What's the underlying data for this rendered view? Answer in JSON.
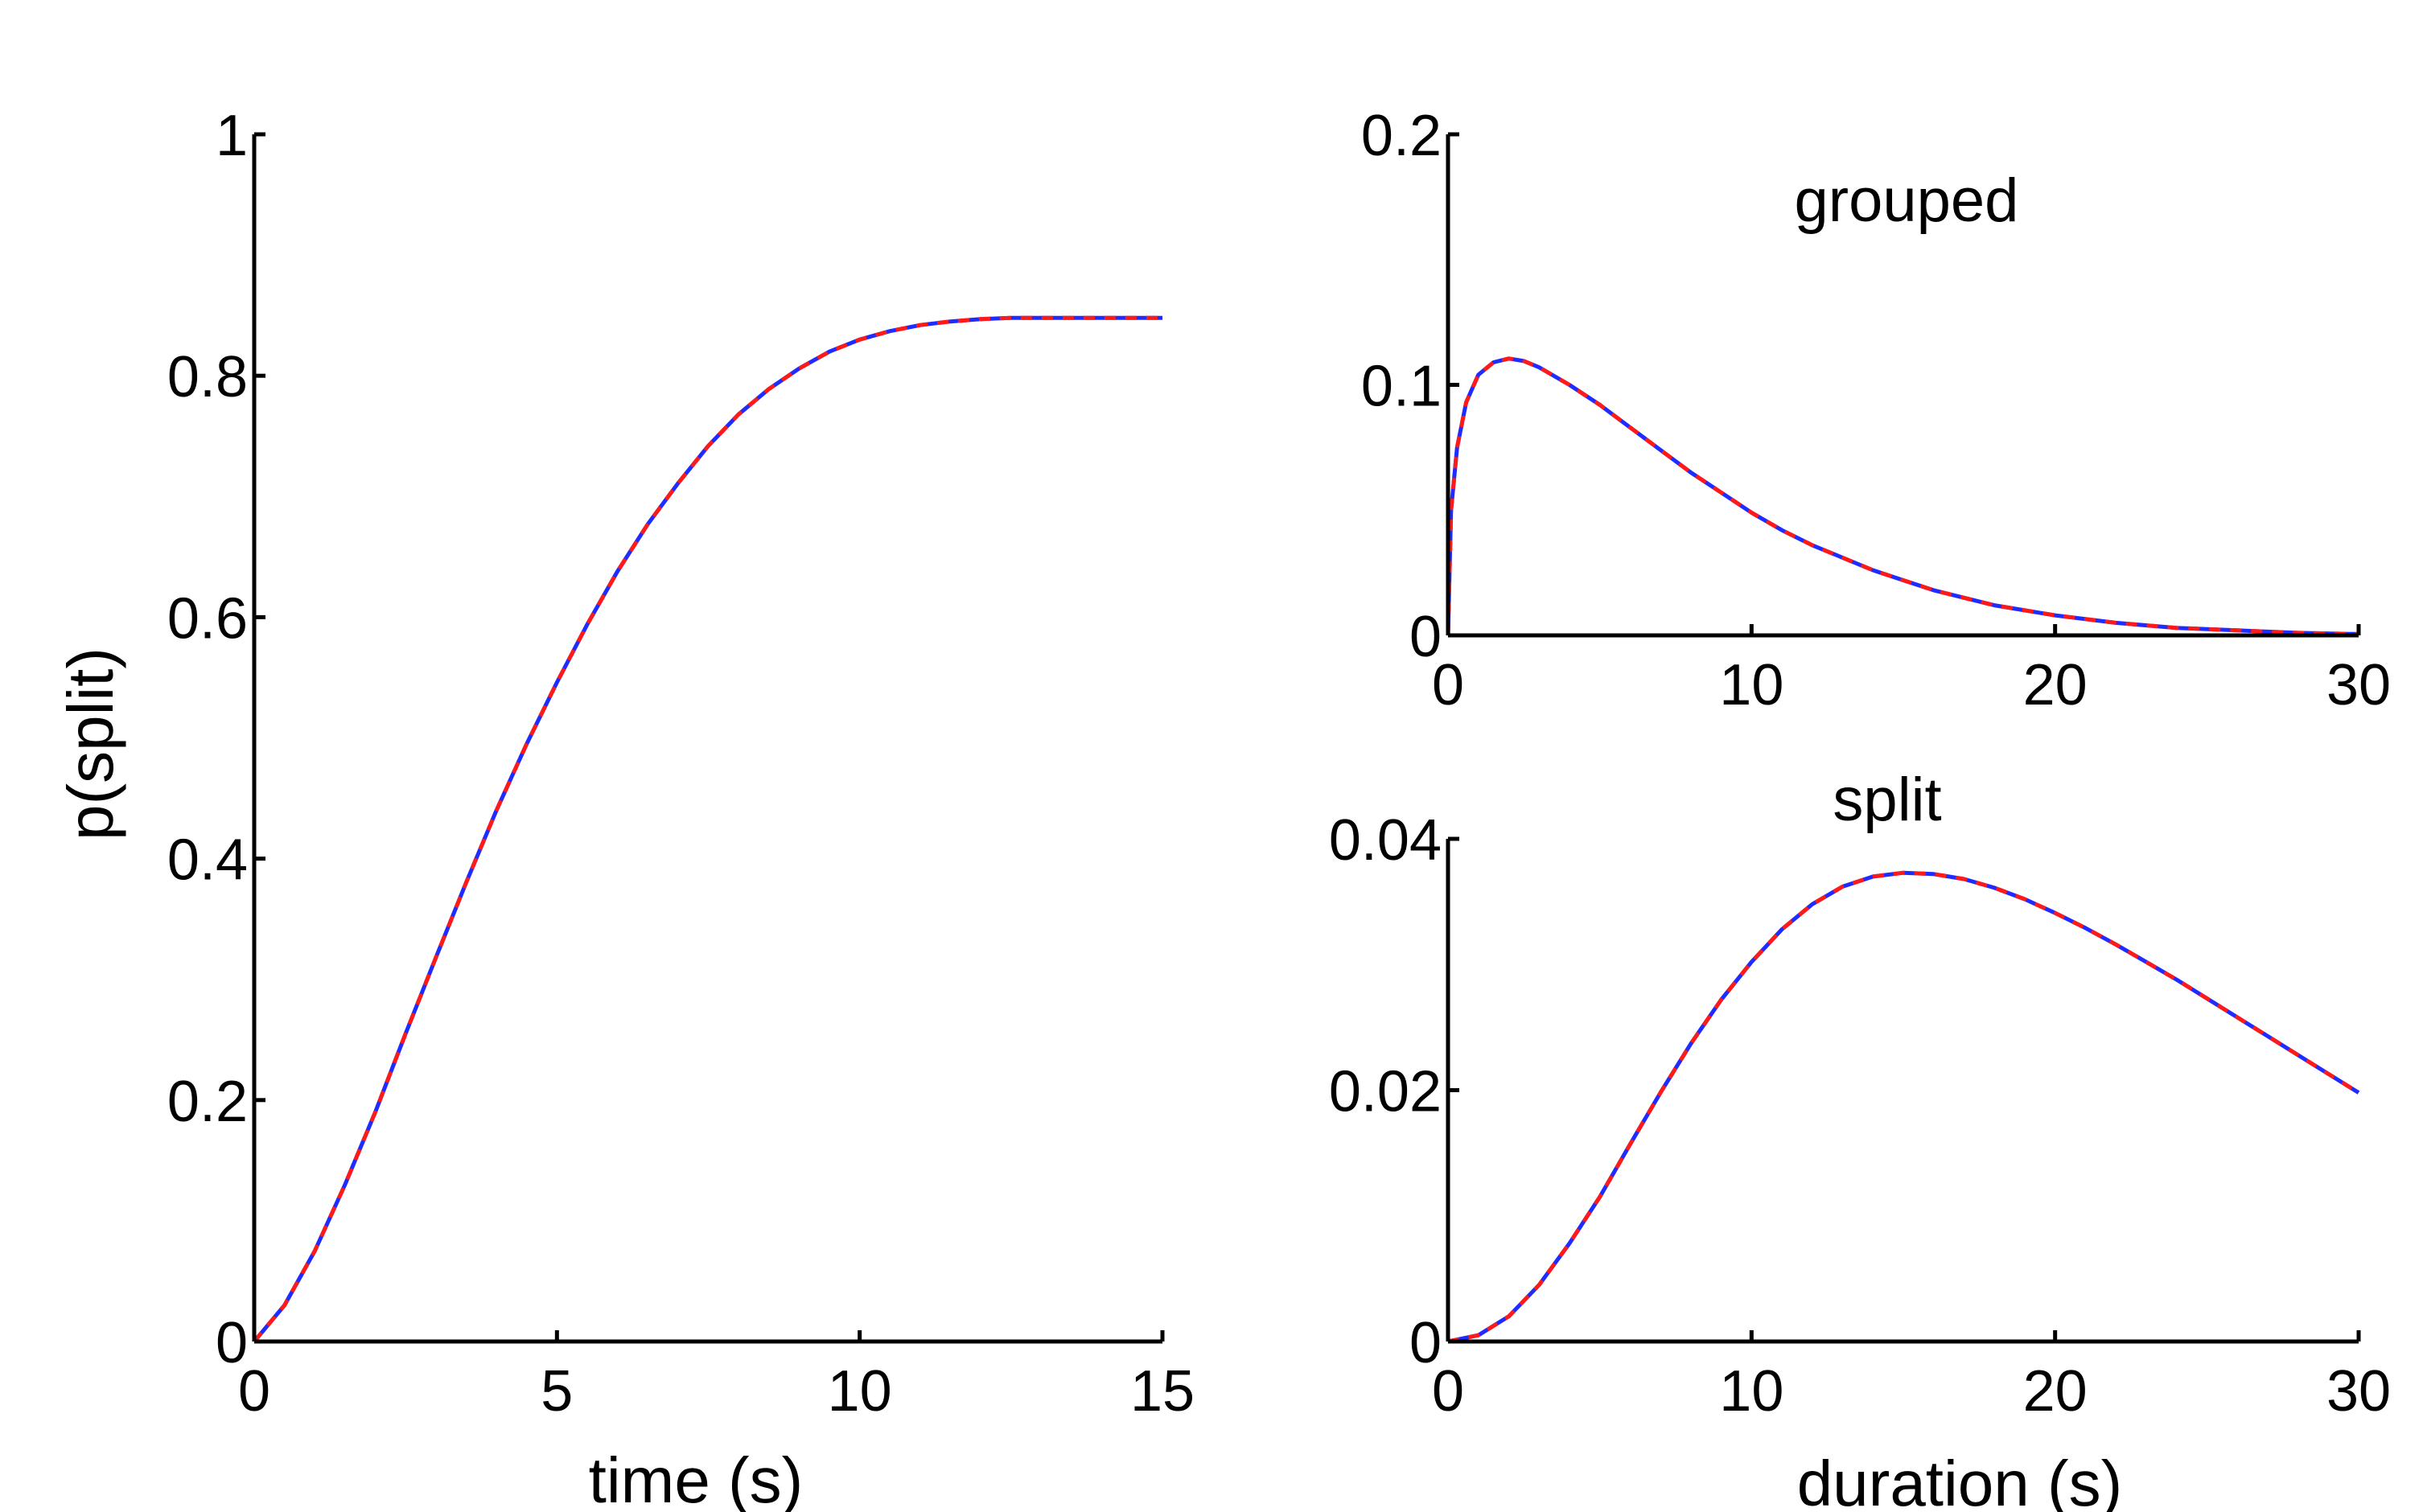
{
  "chart_data": [
    {
      "id": "cumulative",
      "type": "line",
      "title": "",
      "xlabel": "time (s)",
      "ylabel": "p(split)",
      "xlim": [
        0,
        15
      ],
      "ylim": [
        0,
        1
      ],
      "xticks": [
        0,
        5,
        10,
        15
      ],
      "yticks": [
        0,
        0.2,
        0.4,
        0.6,
        0.8,
        1
      ],
      "xtick_labels": [
        "0",
        "5",
        "10",
        "15"
      ],
      "ytick_labels": [
        "0",
        "0.2",
        "0.4",
        "0.6",
        "0.8",
        "1"
      ],
      "grid": false,
      "series": [
        {
          "style": "solid",
          "color": "#1f2bff",
          "x": [
            0,
            0.5,
            1,
            1.5,
            2,
            2.5,
            3,
            3.5,
            4,
            4.5,
            5,
            5.5,
            6,
            6.5,
            7,
            7.5,
            8,
            8.5,
            9,
            9.5,
            10,
            10.5,
            11,
            11.5,
            12,
            12.5,
            13,
            13.5,
            14,
            14.5,
            15
          ],
          "y": [
            0,
            0.03,
            0.075,
            0.13,
            0.19,
            0.255,
            0.318,
            0.38,
            0.44,
            0.495,
            0.546,
            0.594,
            0.638,
            0.677,
            0.711,
            0.742,
            0.768,
            0.789,
            0.806,
            0.82,
            0.83,
            0.837,
            0.842,
            0.845,
            0.847,
            0.848,
            0.848,
            0.848,
            0.848,
            0.848,
            0.848
          ]
        },
        {
          "style": "dashed",
          "color": "#ff1a1a",
          "x": [
            0,
            0.5,
            1,
            1.5,
            2,
            2.5,
            3,
            3.5,
            4,
            4.5,
            5,
            5.5,
            6,
            6.5,
            7,
            7.5,
            8,
            8.5,
            9,
            9.5,
            10,
            10.5,
            11,
            11.5,
            12,
            12.5,
            13,
            13.5,
            14,
            14.5,
            15
          ],
          "y": [
            0,
            0.03,
            0.075,
            0.13,
            0.19,
            0.255,
            0.318,
            0.38,
            0.44,
            0.495,
            0.546,
            0.594,
            0.638,
            0.677,
            0.711,
            0.742,
            0.768,
            0.789,
            0.806,
            0.82,
            0.83,
            0.837,
            0.842,
            0.845,
            0.847,
            0.848,
            0.848,
            0.848,
            0.848,
            0.848,
            0.848
          ]
        }
      ]
    },
    {
      "id": "grouped",
      "type": "line",
      "title": "grouped",
      "xlabel": "",
      "ylabel": "",
      "xlim": [
        0,
        30
      ],
      "ylim": [
        0,
        0.2
      ],
      "xticks": [
        0,
        10,
        20,
        30
      ],
      "yticks": [
        0,
        0.1,
        0.2
      ],
      "xtick_labels": [
        "0",
        "10",
        "20",
        "30"
      ],
      "ytick_labels": [
        "0",
        "0.1",
        "0.2"
      ],
      "grid": false,
      "series": [
        {
          "style": "solid",
          "color": "#1f2bff",
          "x": [
            0,
            0.1,
            0.3,
            0.6,
            1,
            1.5,
            2,
            2.5,
            3,
            4,
            5,
            6,
            7,
            8,
            9,
            10,
            11,
            12,
            13,
            14,
            15,
            16,
            17,
            18,
            19,
            20,
            22,
            24,
            26,
            28,
            30
          ],
          "y": [
            0,
            0.05,
            0.075,
            0.093,
            0.104,
            0.109,
            0.1105,
            0.1095,
            0.107,
            0.1,
            0.092,
            0.083,
            0.074,
            0.065,
            0.057,
            0.049,
            0.042,
            0.036,
            0.031,
            0.026,
            0.022,
            0.018,
            0.015,
            0.012,
            0.01,
            0.008,
            0.005,
            0.003,
            0.002,
            0.001,
            0.0005
          ]
        },
        {
          "style": "dashed",
          "color": "#ff1a1a",
          "x": [
            0,
            0.1,
            0.3,
            0.6,
            1,
            1.5,
            2,
            2.5,
            3,
            4,
            5,
            6,
            7,
            8,
            9,
            10,
            11,
            12,
            13,
            14,
            15,
            16,
            17,
            18,
            19,
            20,
            22,
            24,
            26,
            28,
            30
          ],
          "y": [
            0,
            0.05,
            0.075,
            0.093,
            0.104,
            0.109,
            0.1105,
            0.1095,
            0.107,
            0.1,
            0.092,
            0.083,
            0.074,
            0.065,
            0.057,
            0.049,
            0.042,
            0.036,
            0.031,
            0.026,
            0.022,
            0.018,
            0.015,
            0.012,
            0.01,
            0.008,
            0.005,
            0.003,
            0.002,
            0.001,
            0.0005
          ]
        }
      ]
    },
    {
      "id": "split",
      "type": "line",
      "title": "split",
      "xlabel": "duration (s)",
      "ylabel": "",
      "xlim": [
        0,
        30
      ],
      "ylim": [
        0,
        0.04
      ],
      "xticks": [
        0,
        10,
        20,
        30
      ],
      "yticks": [
        0,
        0.02,
        0.04
      ],
      "xtick_labels": [
        "0",
        "10",
        "20",
        "30"
      ],
      "ytick_labels": [
        "0",
        "0.02",
        "0.04"
      ],
      "grid": false,
      "series": [
        {
          "style": "solid",
          "color": "#1f2bff",
          "x": [
            0,
            1,
            2,
            3,
            4,
            5,
            6,
            7,
            8,
            9,
            10,
            11,
            12,
            13,
            14,
            15,
            16,
            17,
            18,
            19,
            20,
            21,
            22,
            23,
            24,
            25,
            26,
            27,
            28,
            29,
            30
          ],
          "y": [
            0,
            0.0005,
            0.002,
            0.0045,
            0.0078,
            0.0115,
            0.0157,
            0.0198,
            0.0237,
            0.0272,
            0.0302,
            0.0328,
            0.0348,
            0.0362,
            0.037,
            0.0373,
            0.0372,
            0.0368,
            0.0361,
            0.0352,
            0.0341,
            0.0329,
            0.0316,
            0.0302,
            0.0288,
            0.0273,
            0.0258,
            0.0243,
            0.0228,
            0.0213,
            0.0198
          ]
        },
        {
          "style": "dashed",
          "color": "#ff1a1a",
          "x": [
            0,
            1,
            2,
            3,
            4,
            5,
            6,
            7,
            8,
            9,
            10,
            11,
            12,
            13,
            14,
            15,
            16,
            17,
            18,
            19,
            20,
            21,
            22,
            23,
            24,
            25,
            26,
            27,
            28,
            29,
            30
          ],
          "y": [
            0,
            0.0005,
            0.002,
            0.0045,
            0.0078,
            0.0115,
            0.0157,
            0.0198,
            0.0237,
            0.0272,
            0.0302,
            0.0328,
            0.0348,
            0.0362,
            0.037,
            0.0373,
            0.0372,
            0.0368,
            0.0361,
            0.0352,
            0.0341,
            0.0329,
            0.0316,
            0.0302,
            0.0288,
            0.0273,
            0.0258,
            0.0243,
            0.0228,
            0.0213,
            0.0198
          ]
        }
      ]
    }
  ]
}
